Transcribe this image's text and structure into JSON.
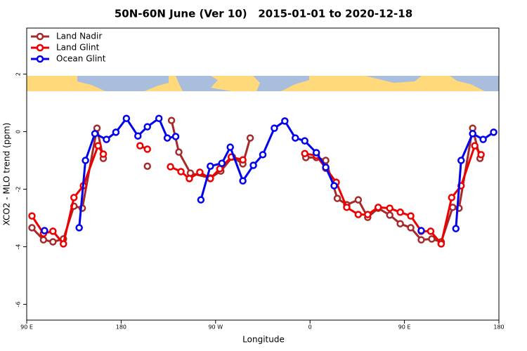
{
  "chart_data": {
    "type": "line",
    "title": "50N-60N June (Ver 10)   2015-01-01 to 2020-12-18",
    "x_label": "Longitude",
    "y_label": "XCO2 - MLO trend (ppm)",
    "xlim": [
      90,
      540
    ],
    "xticks": [
      {
        "value": 90,
        "label": "90 E"
      },
      {
        "value": 180,
        "label": "180"
      },
      {
        "value": 270,
        "label": "90 W"
      },
      {
        "value": 360,
        "label": "0"
      },
      {
        "value": 450,
        "label": "90 E"
      },
      {
        "value": 540,
        "label": "180"
      }
    ],
    "ylim": [
      -6.55,
      3.6
    ],
    "yticks": [
      -6,
      -4,
      -2,
      0,
      2
    ],
    "legend": "top-left",
    "series": [
      {
        "name": "Land Nadir",
        "color": "#A52A2A",
        "x": [
          95,
          106,
          115,
          125,
          135,
          143,
          157,
          163,
          null,
          205,
          null,
          228,
          235,
          246,
          265,
          275,
          286,
          296,
          303,
          null,
          356,
          366,
          375,
          386,
          395,
          406,
          415,
          425,
          436,
          446,
          456,
          466,
          476,
          485,
          496,
          502,
          515,
          522
        ],
        "values": [
          -3.34,
          -3.76,
          -3.83,
          -3.73,
          -2.59,
          -2.66,
          0.12,
          -0.93,
          null,
          -1.2,
          null,
          0.39,
          -0.71,
          -1.44,
          -1.61,
          -1.37,
          -0.88,
          -1.12,
          -0.22,
          null,
          -0.9,
          -0.9,
          -1.0,
          -2.32,
          -2.54,
          -2.37,
          -2.98,
          -2.66,
          -2.9,
          -3.2,
          -3.34,
          -3.76,
          -3.73,
          -3.83,
          -2.63,
          -2.66,
          0.12,
          -0.93
        ]
      },
      {
        "name": "Land Glint",
        "color": "#EE0000",
        "x": [
          95,
          106,
          115,
          125,
          135,
          144,
          158,
          163,
          null,
          198,
          205,
          null,
          227,
          237,
          245,
          255,
          265,
          274,
          285,
          296,
          null,
          355,
          366,
          375,
          385,
          395,
          406,
          415,
          425,
          436,
          446,
          456,
          466,
          475,
          485,
          495,
          504,
          517,
          523
        ],
        "values": [
          -2.93,
          -3.54,
          -3.46,
          -3.9,
          -2.29,
          -1.88,
          -0.49,
          -0.78,
          null,
          -0.49,
          -0.61,
          null,
          -1.22,
          -1.39,
          -1.63,
          -1.41,
          -1.63,
          -1.29,
          -0.88,
          -0.98,
          null,
          -0.76,
          -0.83,
          -1.27,
          -1.76,
          -2.63,
          -2.88,
          -2.88,
          -2.63,
          -2.66,
          -2.8,
          -2.93,
          -3.46,
          -3.46,
          -3.9,
          -2.29,
          -1.88,
          -0.49,
          -0.8
        ]
      },
      {
        "name": "Ocean Glint",
        "color": "#0000EE",
        "x": [
          107,
          null,
          140,
          146,
          155,
          166,
          175,
          185,
          196,
          205,
          216,
          224,
          232,
          null,
          256,
          265,
          276,
          284,
          296,
          306,
          315,
          326,
          336,
          346,
          355,
          366,
          375,
          383,
          null,
          466,
          null,
          499,
          504,
          515,
          525,
          535
        ],
        "values": [
          -3.44,
          null,
          -3.34,
          -1.0,
          -0.07,
          -0.27,
          -0.02,
          0.46,
          -0.15,
          0.17,
          0.46,
          -0.22,
          -0.17,
          null,
          -2.37,
          -1.2,
          -1.1,
          -0.54,
          -1.71,
          -1.17,
          -0.8,
          0.12,
          0.37,
          -0.22,
          -0.32,
          -0.73,
          -1.24,
          -1.88,
          null,
          -3.44,
          null,
          -3.37,
          -1.0,
          -0.07,
          -0.27,
          -0.02
        ]
      }
    ]
  }
}
